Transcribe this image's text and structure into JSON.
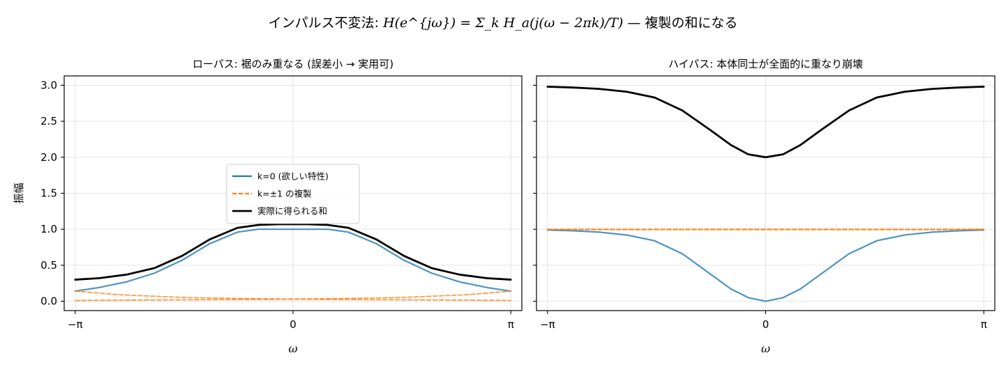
{
  "figure": {
    "suptitle_prefix": "インパルス不変法: ",
    "suptitle_formula": "H(e^{jω}) = Σ_k H_a(j(ω − 2πk)/T)",
    "suptitle_suffix": " — 複製の和になる"
  },
  "colors": {
    "desired": "#1f77b4",
    "alias": "#ff7f0e",
    "sum": "#000000"
  },
  "chart_data": [
    {
      "type": "line",
      "title": "ローパス: 裾のみ重なる (誤差小 → 実用可)",
      "xlabel": "ω",
      "ylabel": "振幅",
      "xlim": [
        -3.3,
        3.3
      ],
      "ylim": [
        -0.13,
        3.13
      ],
      "xticks": [
        -3.14159,
        0,
        3.14159
      ],
      "xtick_labels": [
        "−π",
        "0",
        "π"
      ],
      "yticks": [
        0,
        0.5,
        1,
        1.5,
        2,
        2.5,
        3
      ],
      "ytick_labels": [
        "0.0",
        "0.5",
        "1.0",
        "1.5",
        "2.0",
        "2.5",
        "3.0"
      ],
      "grid": true,
      "legend_position": "center-left",
      "series": [
        {
          "name": "k=0 (欲しい特性)",
          "style": "solid",
          "color": "#1f77b4",
          "x": [
            -3.14,
            -2.8,
            -2.4,
            -2.0,
            -1.6,
            -1.2,
            -0.8,
            -0.5,
            -0.2,
            0,
            0.2,
            0.5,
            0.8,
            1.2,
            1.6,
            2.0,
            2.4,
            2.8,
            3.14
          ],
          "y": [
            0.14,
            0.19,
            0.27,
            0.39,
            0.57,
            0.8,
            0.96,
            1.0,
            1.0,
            1.0,
            1.0,
            1.0,
            0.96,
            0.8,
            0.57,
            0.39,
            0.27,
            0.19,
            0.14
          ]
        },
        {
          "name": "k=±1 の複製",
          "style": "dashed",
          "color": "#ff7f0e",
          "x": [
            -3.14,
            -2.5,
            -1.5,
            -0.5,
            0,
            0.5,
            1.5,
            2.5,
            3.14
          ],
          "y": [
            0.14,
            0.09,
            0.05,
            0.035,
            0.03,
            0.025,
            0.02,
            0.015,
            0.01
          ]
        },
        {
          "name": "",
          "style": "dashed",
          "color": "#ff7f0e",
          "x": [
            -3.14,
            -2.5,
            -1.5,
            -0.5,
            0,
            0.5,
            1.5,
            2.5,
            3.14
          ],
          "y": [
            0.01,
            0.015,
            0.02,
            0.025,
            0.03,
            0.035,
            0.05,
            0.09,
            0.14
          ]
        },
        {
          "name": "実際に得られる和",
          "style": "solid",
          "color": "#000000",
          "x": [
            -3.14,
            -2.8,
            -2.4,
            -2.0,
            -1.6,
            -1.2,
            -0.8,
            -0.5,
            -0.2,
            0,
            0.2,
            0.5,
            0.8,
            1.2,
            1.6,
            2.0,
            2.4,
            2.8,
            3.14
          ],
          "y": [
            0.3,
            0.32,
            0.37,
            0.46,
            0.63,
            0.86,
            1.02,
            1.06,
            1.07,
            1.07,
            1.07,
            1.06,
            1.02,
            0.86,
            0.63,
            0.46,
            0.37,
            0.32,
            0.3
          ]
        }
      ]
    },
    {
      "type": "line",
      "title": "ハイパス: 本体同士が全面的に重なり崩壊",
      "xlabel": "ω",
      "ylabel": "",
      "xlim": [
        -3.3,
        3.3
      ],
      "ylim": [
        -0.13,
        3.13
      ],
      "xticks": [
        -3.14159,
        0,
        3.14159
      ],
      "xtick_labels": [
        "−π",
        "0",
        "π"
      ],
      "yticks": [
        0,
        0.5,
        1,
        1.5,
        2,
        2.5,
        3
      ],
      "ytick_labels": [],
      "grid": true,
      "series": [
        {
          "name": "",
          "style": "solid",
          "color": "#1f77b4",
          "x": [
            -3.14,
            -2.8,
            -2.4,
            -2.0,
            -1.6,
            -1.2,
            -0.8,
            -0.5,
            -0.25,
            0,
            0.25,
            0.5,
            0.8,
            1.2,
            1.6,
            2.0,
            2.4,
            2.8,
            3.14
          ],
          "y": [
            0.99,
            0.98,
            0.96,
            0.92,
            0.84,
            0.66,
            0.38,
            0.17,
            0.05,
            0.0,
            0.05,
            0.17,
            0.38,
            0.66,
            0.84,
            0.92,
            0.96,
            0.98,
            0.99
          ]
        },
        {
          "name": "",
          "style": "dashed",
          "color": "#ff7f0e",
          "x": [
            -3.14,
            3.14
          ],
          "y": [
            1.0,
            1.0
          ]
        },
        {
          "name": "",
          "style": "dashed",
          "color": "#ff7f0e",
          "x": [
            -3.14,
            3.14
          ],
          "y": [
            0.995,
            0.995
          ]
        },
        {
          "name": "",
          "style": "solid",
          "color": "#000000",
          "x": [
            -3.14,
            -2.8,
            -2.4,
            -2.0,
            -1.6,
            -1.2,
            -0.8,
            -0.5,
            -0.25,
            0,
            0.25,
            0.5,
            0.8,
            1.2,
            1.6,
            2.0,
            2.4,
            2.8,
            3.14
          ],
          "y": [
            2.98,
            2.97,
            2.95,
            2.91,
            2.83,
            2.65,
            2.38,
            2.17,
            2.04,
            2.0,
            2.04,
            2.17,
            2.38,
            2.65,
            2.83,
            2.91,
            2.95,
            2.97,
            2.98
          ]
        }
      ]
    }
  ]
}
